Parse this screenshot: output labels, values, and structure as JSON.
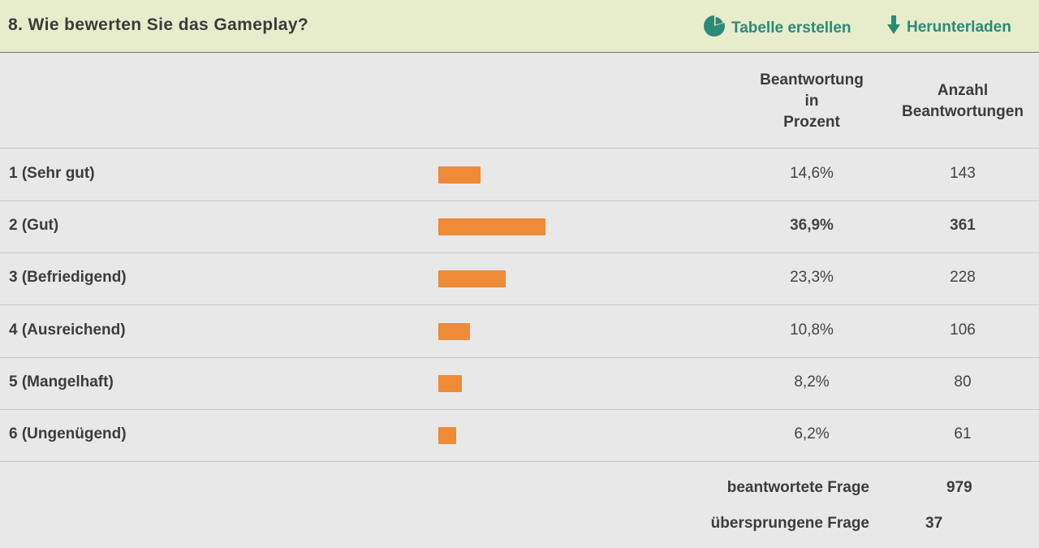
{
  "header": {
    "title": "8. Wie bewerten Sie das Gameplay?",
    "create_table_label": "Tabelle erstellen",
    "download_label": "Herunterladen",
    "accent_color": "#2b8a78",
    "background_color": "#e7eccb"
  },
  "columns": {
    "percent_header": [
      "Beantwortung",
      "in",
      "Prozent"
    ],
    "count_header": [
      "Anzahl",
      "Beantwortungen"
    ]
  },
  "rows": [
    {
      "label": "1 (Sehr gut)",
      "percent_text": "14,6%",
      "percent": 14.6,
      "count": "143"
    },
    {
      "label": "2 (Gut)",
      "percent_text": "36,9%",
      "percent": 36.9,
      "count": "361"
    },
    {
      "label": "3 (Befriedigend)",
      "percent_text": "23,3%",
      "percent": 23.3,
      "count": "228"
    },
    {
      "label": "4 (Ausreichend)",
      "percent_text": "10,8%",
      "percent": 10.8,
      "count": "106"
    },
    {
      "label": "5 (Mangelhaft)",
      "percent_text": "8,2%",
      "percent": 8.2,
      "count": "80"
    },
    {
      "label": "6 (Ungenügend)",
      "percent_text": "6,2%",
      "percent": 6.2,
      "count": "61"
    }
  ],
  "bar_color": "#ef8a36",
  "footer": {
    "answered_label": "beantwortete Frage",
    "answered_value": "979",
    "skipped_label": "übersprungene Frage",
    "skipped_value": "37"
  }
}
